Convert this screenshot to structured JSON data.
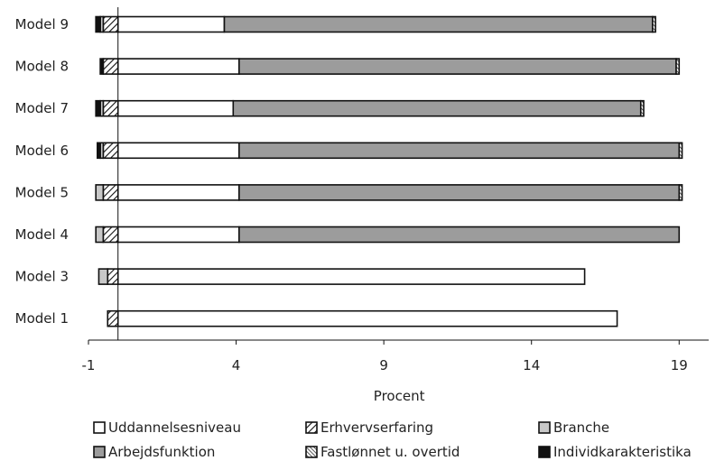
{
  "chart_data": {
    "type": "bar",
    "orientation": "horizontal",
    "stacked": true,
    "xlabel": "Procent",
    "xlim": [
      -1,
      20
    ],
    "xticks": [
      "-1",
      "4",
      "9",
      "14",
      "19"
    ],
    "grid": false,
    "legend_position": "bottom",
    "categories": [
      "Model 9",
      "Model 8",
      "Model 7",
      "Model 6",
      "Model 5",
      "Model 4",
      "Model 3",
      "Model 1"
    ],
    "series": [
      {
        "name": "Uddannelsesniveau",
        "color": "#ffffff",
        "pattern": "none",
        "side": "positive",
        "values": [
          3.6,
          4.1,
          3.9,
          4.1,
          4.1,
          4.1,
          15.8,
          16.9
        ]
      },
      {
        "name": "Arbejdsfunktion",
        "color": "#9c9c9c",
        "pattern": "none",
        "side": "positive",
        "values": [
          14.5,
          14.8,
          13.8,
          14.9,
          14.9,
          14.9,
          0,
          0
        ]
      },
      {
        "name": "Fastlønnet u. overtid",
        "color": "#ffffff",
        "pattern": "hatch-dense",
        "side": "positive",
        "values": [
          0.1,
          0.1,
          0.1,
          0.1,
          0.1,
          0,
          0,
          0
        ]
      },
      {
        "name": "Erhvervserfaring",
        "color": "#ffffff",
        "pattern": "hatch",
        "side": "negative",
        "values": [
          0.5,
          0.5,
          0.5,
          0.5,
          0.5,
          0.5,
          0.35,
          0.35
        ]
      },
      {
        "name": "Branche",
        "color": "#c8c8c8",
        "pattern": "none",
        "side": "negative",
        "values": [
          0.1,
          0,
          0.1,
          0.1,
          0.25,
          0.25,
          0.3,
          0
        ]
      },
      {
        "name": "Individkarakteristika",
        "color": "#111111",
        "pattern": "none",
        "side": "negative",
        "values": [
          0.15,
          0.1,
          0.15,
          0.1,
          0,
          0,
          0,
          0
        ]
      }
    ],
    "legend_order": [
      "Uddannelsesniveau",
      "Erhvervserfaring",
      "Branche",
      "Arbejdsfunktion",
      "Fastlønnet u. overtid",
      "Individkarakteristika"
    ]
  }
}
